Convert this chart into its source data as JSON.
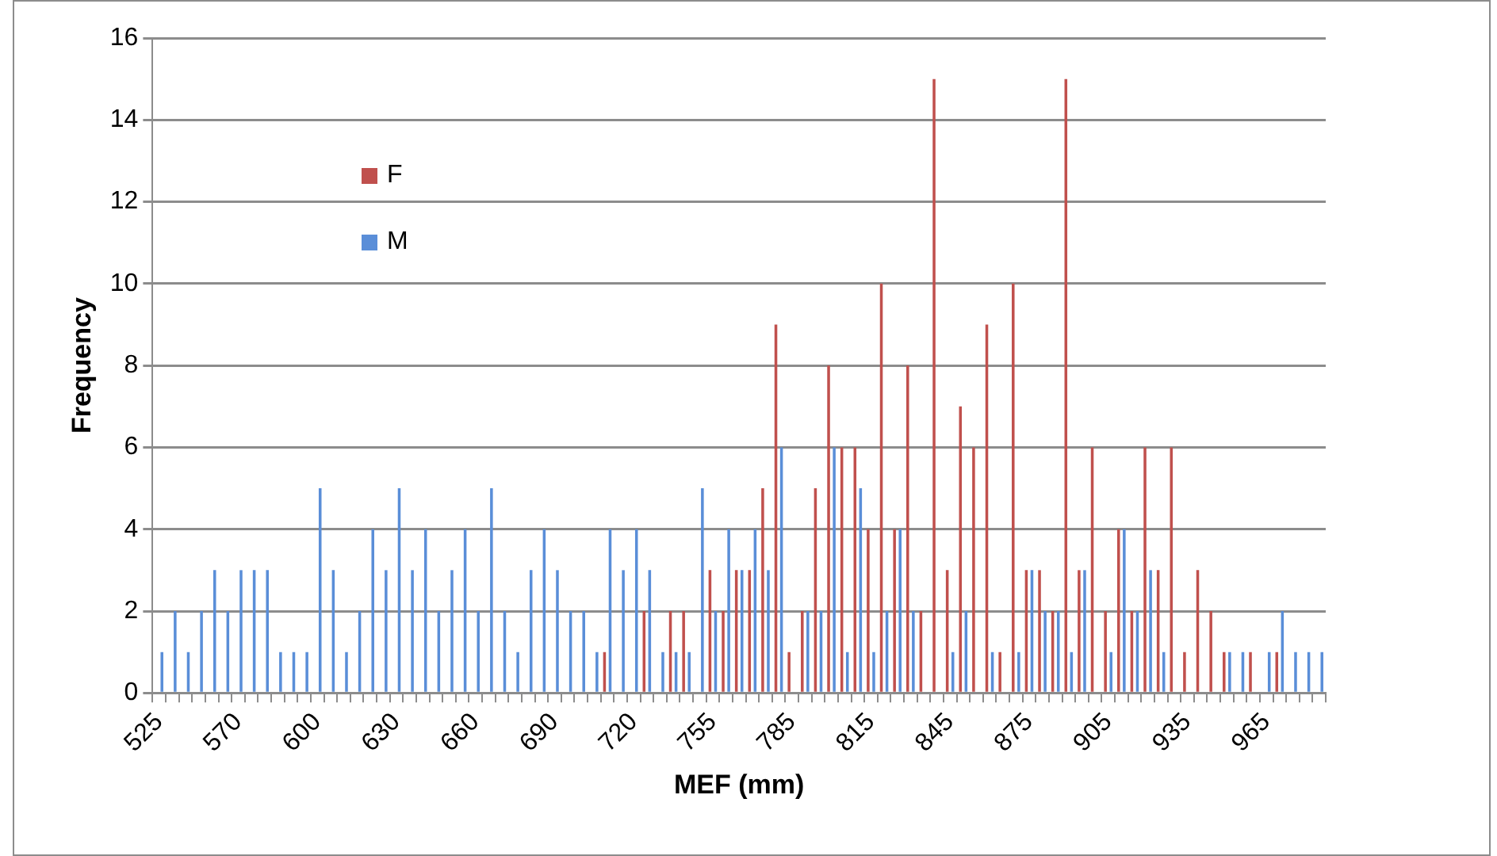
{
  "chart_data": {
    "type": "bar",
    "xlabel": "MEF (mm)",
    "ylabel": "Frequency",
    "categories": [
      "525",
      null,
      null,
      null,
      null,
      null,
      "570",
      null,
      null,
      null,
      null,
      null,
      "600",
      null,
      null,
      null,
      null,
      null,
      "630",
      null,
      null,
      null,
      null,
      null,
      "660",
      null,
      null,
      null,
      null,
      null,
      "690",
      null,
      null,
      null,
      null,
      null,
      "720",
      null,
      null,
      null,
      null,
      null,
      "755",
      null,
      null,
      null,
      null,
      null,
      "785",
      null,
      null,
      null,
      null,
      null,
      "815",
      null,
      null,
      null,
      null,
      null,
      "845",
      null,
      null,
      null,
      null,
      null,
      "875",
      null,
      null,
      null,
      null,
      null,
      "905",
      null,
      null,
      null,
      null,
      null,
      "935",
      null,
      null,
      null,
      null,
      null,
      "965",
      null,
      null,
      null,
      null
    ],
    "series": [
      {
        "name": "F",
        "color": "#c0504d",
        "values": [
          0,
          0,
          0,
          0,
          0,
          0,
          0,
          0,
          0,
          0,
          0,
          0,
          0,
          0,
          0,
          0,
          0,
          0,
          0,
          0,
          0,
          0,
          0,
          0,
          0,
          0,
          0,
          0,
          0,
          0,
          0,
          0,
          0,
          0,
          1,
          0,
          0,
          2,
          0,
          2,
          2,
          0,
          3,
          2,
          3,
          3,
          5,
          9,
          1,
          2,
          5,
          8,
          6,
          6,
          4,
          10,
          4,
          8,
          2,
          15,
          3,
          7,
          6,
          9,
          1,
          10,
          3,
          3,
          2,
          15,
          3,
          6,
          2,
          4,
          2,
          6,
          3,
          6,
          1,
          3,
          2,
          1,
          0,
          1,
          0,
          1,
          0,
          0,
          0
        ]
      },
      {
        "name": "M",
        "color": "#5a8ed8",
        "values": [
          1,
          2,
          1,
          2,
          3,
          2,
          3,
          3,
          3,
          1,
          1,
          1,
          5,
          3,
          1,
          2,
          4,
          3,
          5,
          3,
          4,
          2,
          3,
          4,
          2,
          5,
          2,
          1,
          3,
          4,
          3,
          2,
          2,
          1,
          4,
          3,
          4,
          3,
          1,
          1,
          1,
          5,
          2,
          4,
          3,
          4,
          3,
          6,
          0,
          2,
          2,
          6,
          1,
          5,
          1,
          2,
          4,
          2,
          0,
          0,
          1,
          2,
          0,
          1,
          0,
          1,
          3,
          2,
          2,
          1,
          3,
          0,
          1,
          4,
          2,
          3,
          1,
          0,
          0,
          0,
          0,
          1,
          1,
          0,
          1,
          2,
          1,
          1,
          1
        ]
      }
    ],
    "ylim": [
      0,
      16
    ],
    "yticks": [
      0,
      2,
      4,
      6,
      8,
      10,
      12,
      14,
      16
    ],
    "grid": "y",
    "legend": "top left"
  }
}
